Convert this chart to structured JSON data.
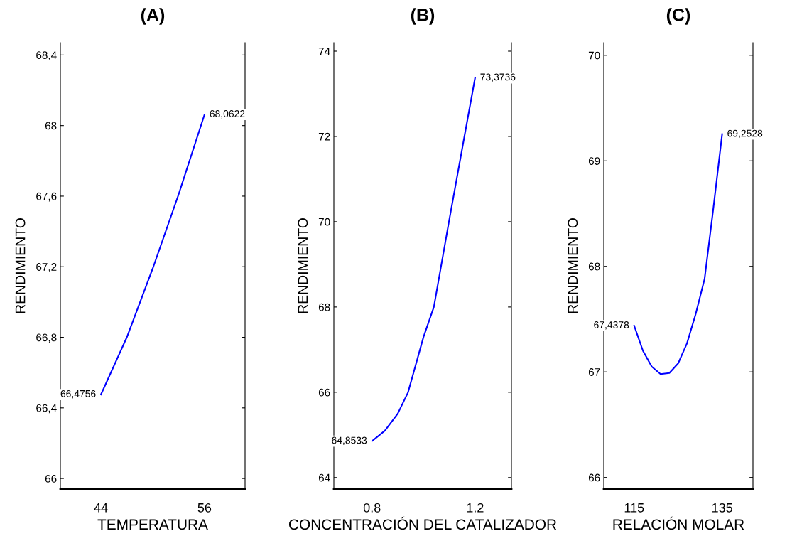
{
  "chart_data": [
    {
      "type": "line",
      "title": "(A)",
      "xlabel": "TEMPERATURA",
      "ylabel": "RENDIMIENTO",
      "xlim": [
        39.3,
        60.7
      ],
      "xticks": [
        44,
        56
      ],
      "ylim": [
        65.94,
        68.47
      ],
      "yticks": [
        {
          "value": 66,
          "label": "66"
        },
        {
          "value": 66.4,
          "label": "66,4"
        },
        {
          "value": 66.8,
          "label": "66,8"
        },
        {
          "value": 67.2,
          "label": "67,2"
        },
        {
          "value": 67.6,
          "label": "67,6"
        },
        {
          "value": 68,
          "label": "68"
        },
        {
          "value": 68.4,
          "label": "68,4"
        }
      ],
      "series": [
        {
          "color": "#0000ff",
          "x": [
            44,
            47,
            50,
            53,
            56
          ],
          "values": [
            66.4756,
            66.8,
            67.19,
            67.61,
            68.0622
          ]
        }
      ],
      "annotations": [
        {
          "text": "66,4756",
          "x": 44,
          "y": 66.4756
        },
        {
          "text": "68,0622",
          "x": 56,
          "y": 68.0622
        }
      ]
    },
    {
      "type": "line",
      "title": "(B)",
      "xlabel": "CONCENTRACIÓN DEL CATALIZADOR",
      "ylabel": "RENDIMIENTO",
      "xlim": [
        0.652,
        1.341
      ],
      "xticks": [
        0.8,
        1.2
      ],
      "ylim": [
        63.73,
        74.2
      ],
      "yticks": [
        64,
        66,
        68,
        70,
        72,
        74
      ],
      "series": [
        {
          "color": "#0000ff",
          "x": [
            0.8,
            0.85,
            0.9,
            0.94,
            1.0,
            1.04,
            1.1,
            1.16,
            1.2
          ],
          "values": [
            64.8533,
            65.1,
            65.5,
            66.0,
            67.3,
            68.0,
            70.05,
            72.05,
            73.3736
          ]
        }
      ],
      "annotations": [
        {
          "text": "64,8533",
          "x": 0.8,
          "y": 64.8533
        },
        {
          "text": "73,3736",
          "x": 1.2,
          "y": 73.3736
        }
      ]
    },
    {
      "type": "line",
      "title": "(C)",
      "xlabel": "RELACIÓN MOLAR",
      "ylabel": "RENDIMIENTO",
      "xlim": [
        108.1,
        142.0
      ],
      "xticks": [
        115,
        135
      ],
      "ylim": [
        65.89,
        70.12
      ],
      "yticks": [
        66,
        67,
        68,
        69,
        70
      ],
      "series": [
        {
          "color": "#0000ff",
          "x": [
            115,
            117,
            119,
            121,
            123,
            125,
            127,
            129,
            131,
            133,
            135
          ],
          "values": [
            67.4378,
            67.2,
            67.05,
            66.98,
            66.99,
            67.08,
            67.27,
            67.55,
            67.88,
            68.55,
            69.2528
          ]
        }
      ],
      "annotations": [
        {
          "text": "67,4378",
          "x": 115,
          "y": 67.4378
        },
        {
          "text": "69,2528",
          "x": 135,
          "y": 69.2528
        }
      ]
    }
  ]
}
